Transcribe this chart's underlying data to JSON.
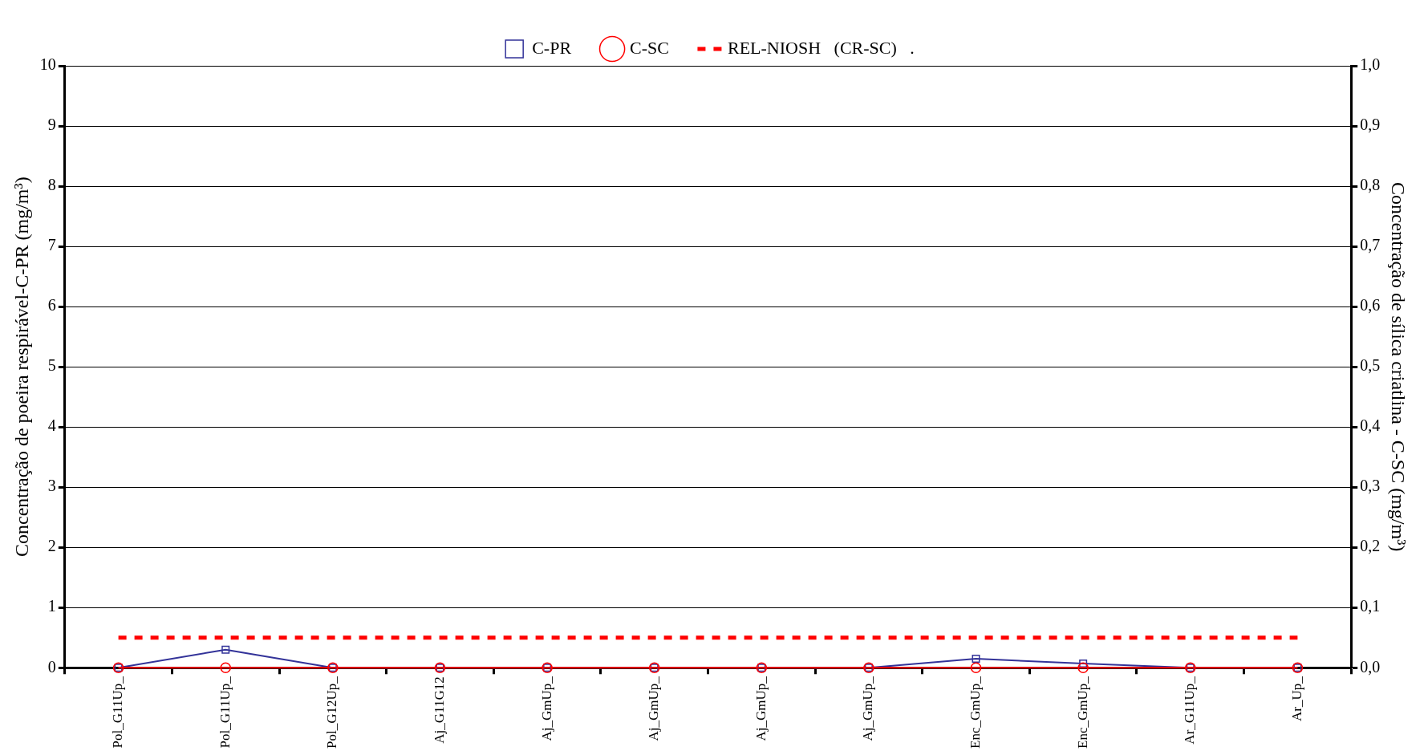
{
  "chart_data": {
    "type": "line",
    "ylabel": "Concentração de poeira respirável-C-PR (mg/m³)",
    "y2label": "Concentração de sílica criatlina - C-SC (mg/m³)",
    "categories": [
      "Pol_G11Up_",
      "Pol_G11Up_",
      "Pol_G12Up_",
      "Aj_G11G12",
      "Aj_GmUp_",
      "Aj_GmUp_",
      "Aj_GmUp_",
      "Aj_GmUp_",
      "Enc_GmUp_",
      "Enc_GmUp_",
      "Ar_G11Up_",
      "Ar_Up_"
    ],
    "series": [
      {
        "name": "C-PR",
        "color": "#333399",
        "marker": "square",
        "line_style": "solid",
        "values": [
          0,
          0.3,
          0,
          0,
          0,
          0,
          0,
          0,
          0.15,
          0.07,
          0,
          0
        ]
      },
      {
        "name": "C-SC",
        "color": "#ff0000",
        "marker": "circle",
        "line_style": "solid",
        "axis": "y2",
        "values": [
          0,
          0,
          0,
          0,
          0,
          0,
          0,
          0,
          0,
          0,
          0,
          0
        ]
      },
      {
        "name": "REL-NIOSH   (CR-SC)   .",
        "color": "#ff0000",
        "marker": "none",
        "line_style": "dotted",
        "axis": "y2",
        "values": [
          0.05,
          0.05,
          0.05,
          0.05,
          0.05,
          0.05,
          0.05,
          0.05,
          0.05,
          0.05,
          0.05,
          0.05
        ]
      }
    ],
    "ylim": [
      0,
      10
    ],
    "yticks": [
      0,
      1,
      2,
      3,
      4,
      5,
      6,
      7,
      8,
      9,
      10
    ],
    "y2lim": [
      0,
      1
    ],
    "y2ticks": [
      {
        "value": 0,
        "label": "0,0"
      },
      {
        "value": 0.1,
        "label": "0,1"
      },
      {
        "value": 0.2,
        "label": "0,2"
      },
      {
        "value": 0.3,
        "label": "0,3"
      },
      {
        "value": 0.4,
        "label": "0,4"
      },
      {
        "value": 0.5,
        "label": "0,5"
      },
      {
        "value": 0.6,
        "label": "0,6"
      },
      {
        "value": 0.7,
        "label": "0,7"
      },
      {
        "value": 0.8,
        "label": "0,8"
      },
      {
        "value": 0.9,
        "label": "0,9"
      },
      {
        "value": 1,
        "label": "1,0"
      }
    ],
    "grid": "y",
    "legend": "top"
  }
}
